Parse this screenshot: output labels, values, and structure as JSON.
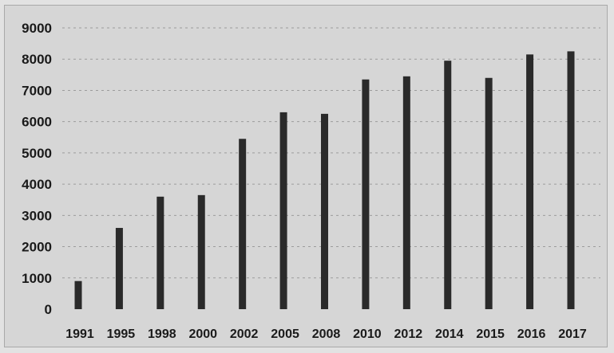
{
  "chart_data": {
    "type": "bar",
    "categories": [
      "1991",
      "1995",
      "1998",
      "2000",
      "2002",
      "2005",
      "2008",
      "2010",
      "2012",
      "2014",
      "2015",
      "2016",
      "2017"
    ],
    "values": [
      900,
      2600,
      3600,
      3650,
      5450,
      6300,
      6250,
      7350,
      7450,
      7950,
      7400,
      8150,
      8250
    ],
    "title": "",
    "xlabel": "",
    "ylabel": "",
    "ylim": [
      0,
      9000
    ],
    "yticks": [
      "0",
      "1000",
      "2000",
      "3000",
      "4000",
      "5000",
      "6000",
      "7000",
      "8000",
      "9000"
    ],
    "grid": true,
    "legend": "none",
    "colors": {
      "bar": "#2a2a2a",
      "background": "#d6d6d6"
    }
  }
}
